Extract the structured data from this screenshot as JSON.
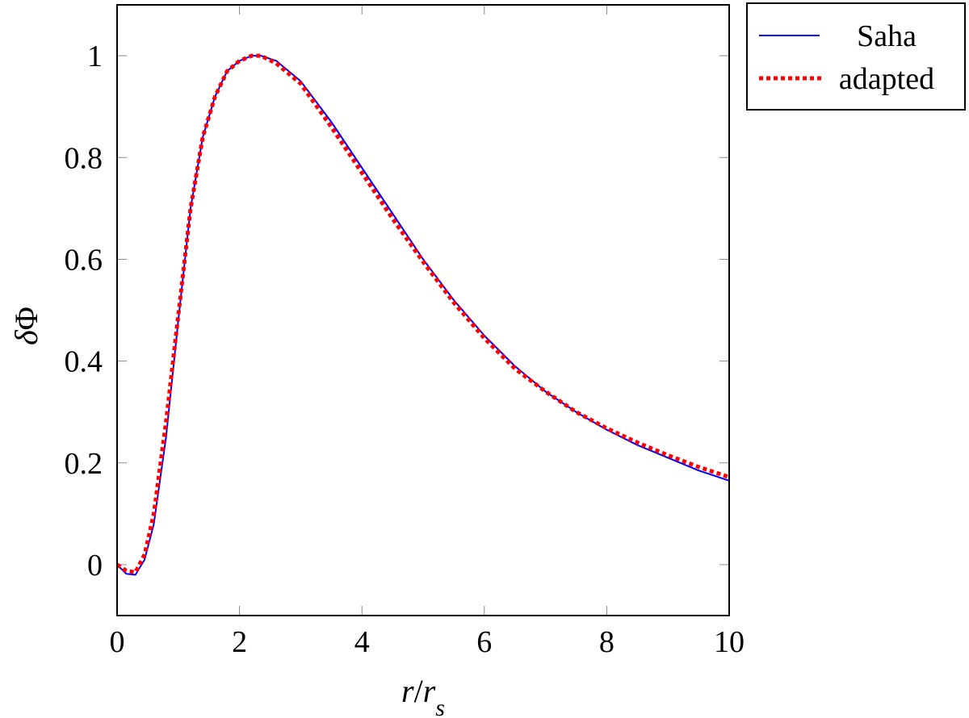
{
  "chart_data": {
    "type": "line",
    "xlabel": "r/r_s",
    "ylabel": "δΦ",
    "xlim": [
      0,
      10
    ],
    "ylim": [
      -0.1,
      1.1
    ],
    "x_ticks": [
      0,
      2,
      4,
      6,
      8,
      10
    ],
    "x_tick_labels": [
      "0",
      "2",
      "4",
      "6",
      "8",
      "10"
    ],
    "y_ticks": [
      0,
      0.2,
      0.4,
      0.6,
      0.8,
      1
    ],
    "y_tick_labels": [
      "0",
      "0.2",
      "0.4",
      "0.6",
      "0.8",
      "1"
    ],
    "grid": false,
    "legend_position": "outside top-right",
    "series": [
      {
        "name": "Saha",
        "color": "#0000ff",
        "style": "solid",
        "x": [
          0,
          0.15,
          0.3,
          0.45,
          0.6,
          0.8,
          1.0,
          1.2,
          1.4,
          1.6,
          1.8,
          2.0,
          2.2,
          2.35,
          2.6,
          3.0,
          3.5,
          4.0,
          4.5,
          5.0,
          5.5,
          6.0,
          6.5,
          7.0,
          7.5,
          8.0,
          8.5,
          9.0,
          9.5,
          10.0
        ],
        "y": [
          0,
          -0.018,
          -0.02,
          0.01,
          0.08,
          0.25,
          0.48,
          0.7,
          0.84,
          0.92,
          0.97,
          0.99,
          1.0,
          1.0,
          0.99,
          0.95,
          0.87,
          0.78,
          0.69,
          0.6,
          0.52,
          0.45,
          0.39,
          0.34,
          0.3,
          0.265,
          0.235,
          0.21,
          0.185,
          0.165
        ]
      },
      {
        "name": "adapted",
        "color": "#ff0000",
        "style": "dotted",
        "x": [
          0,
          0.15,
          0.3,
          0.45,
          0.6,
          0.8,
          1.0,
          1.2,
          1.4,
          1.6,
          1.8,
          2.0,
          2.2,
          2.35,
          2.6,
          3.0,
          3.5,
          4.0,
          4.5,
          5.0,
          5.5,
          6.0,
          6.5,
          7.0,
          7.5,
          8.0,
          8.5,
          9.0,
          9.5,
          10.0
        ],
        "y": [
          0,
          -0.012,
          -0.015,
          0.02,
          0.1,
          0.28,
          0.49,
          0.7,
          0.84,
          0.92,
          0.97,
          0.99,
          1.0,
          1.0,
          0.985,
          0.945,
          0.86,
          0.77,
          0.68,
          0.595,
          0.515,
          0.445,
          0.385,
          0.34,
          0.3,
          0.268,
          0.24,
          0.215,
          0.192,
          0.172
        ]
      }
    ]
  }
}
